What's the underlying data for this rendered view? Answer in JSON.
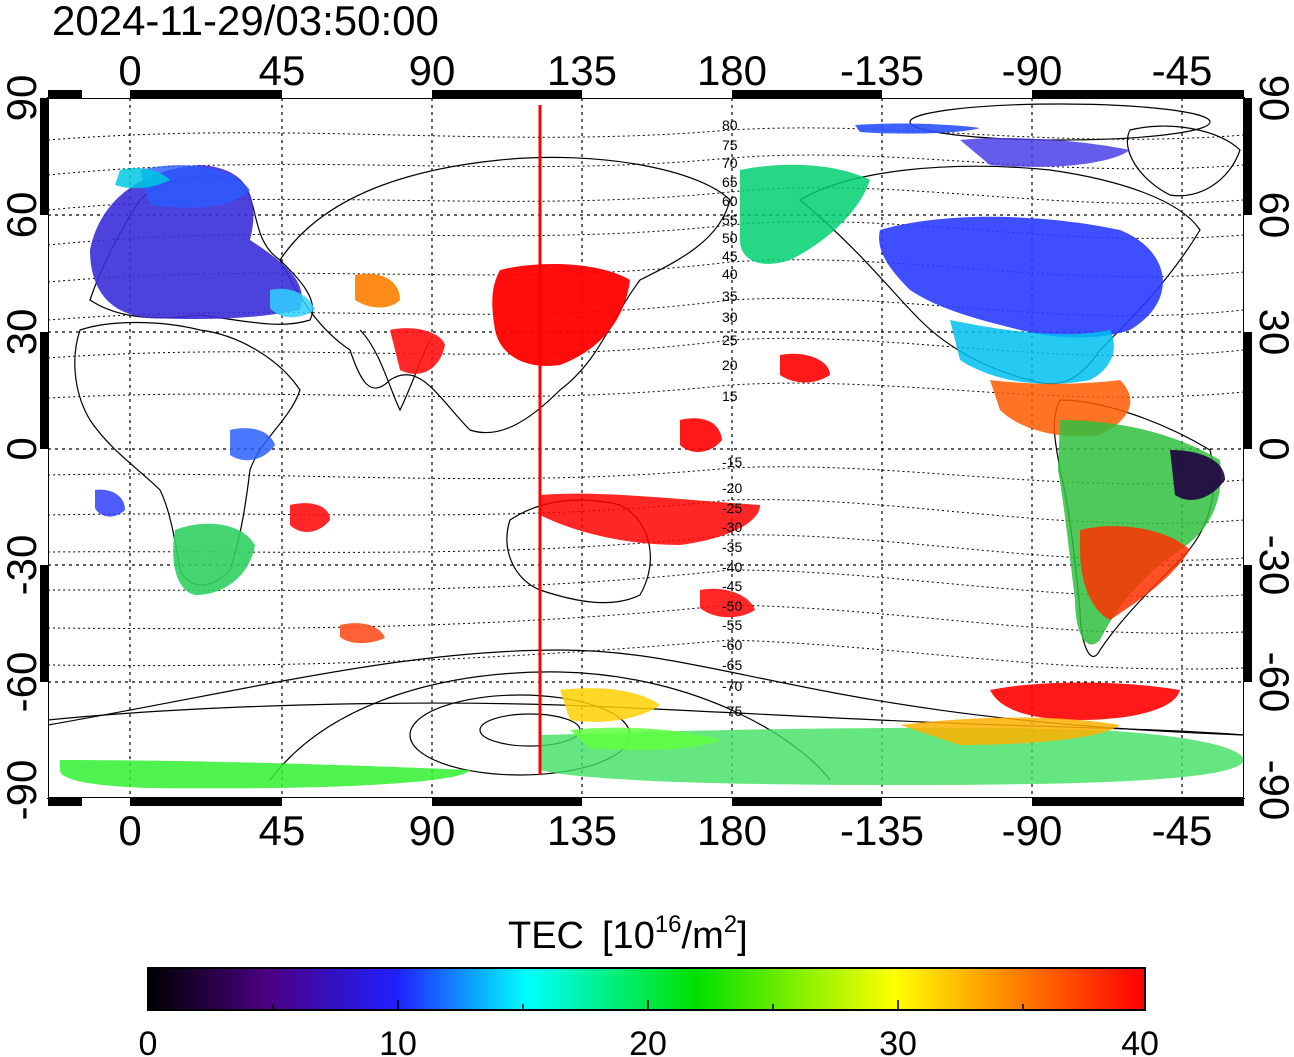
{
  "timestamp": "2024-11-29/03:50:00",
  "longitude_ticks": [
    "0",
    "45",
    "90",
    "135",
    "180",
    "-135",
    "-90",
    "-45"
  ],
  "latitude_ticks": [
    "90",
    "60",
    "30",
    "0",
    "-30",
    "-60",
    "-90"
  ],
  "magnetic_latitude_labels": [
    "80",
    "75",
    "70",
    "65",
    "60",
    "55",
    "50",
    "45",
    "40",
    "35",
    "30",
    "25",
    "20",
    "15",
    "-15",
    "-20",
    "-25",
    "-30",
    "-35",
    "-40",
    "-45",
    "-50",
    "-55",
    "-60",
    "-65",
    "-70",
    "-75"
  ],
  "colorbar": {
    "title": "TEC",
    "unit_prefix": "[10",
    "unit_exp": "16",
    "unit_mid": "/m",
    "unit_sq": "2",
    "unit_suffix": "]",
    "tick_labels": [
      "0",
      "10",
      "20",
      "30",
      "40"
    ],
    "min": 0,
    "max": 40,
    "colors": [
      "#000000",
      "#4b0082",
      "#2020ff",
      "#00ffff",
      "#00e000",
      "#ffff00",
      "#ff8000",
      "#ff0000"
    ]
  },
  "map": {
    "background": "#ffffff",
    "terminator_color": "#ff0000",
    "terminator_longitude": 125
  }
}
